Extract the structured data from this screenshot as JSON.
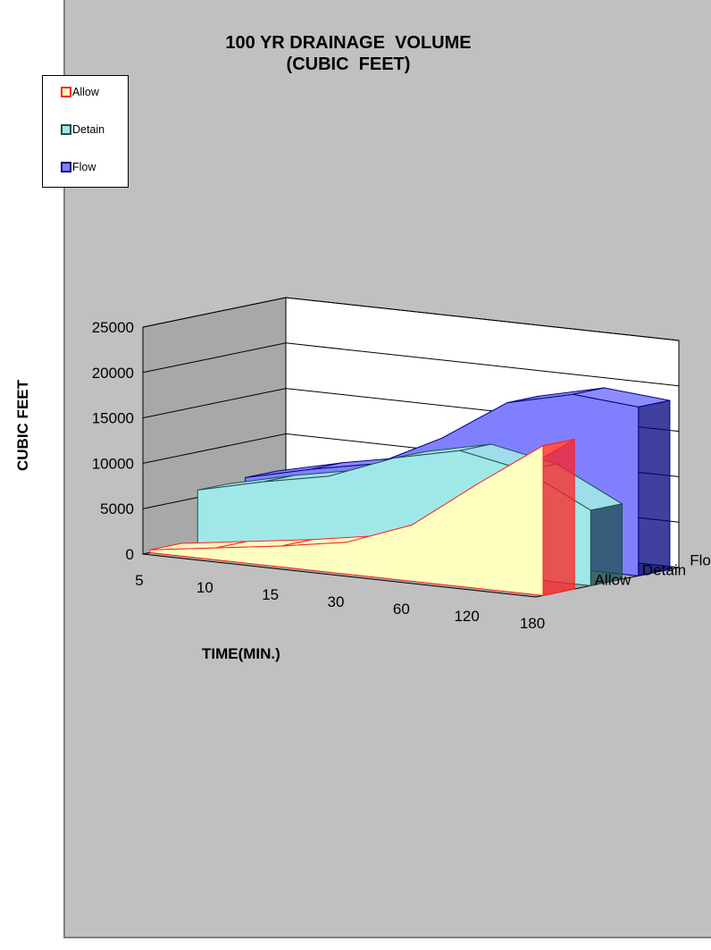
{
  "chart_data": {
    "type": "area",
    "view": "3d",
    "title": "100 YR DRAINAGE  VOLUME",
    "subtitle": "(CUBIC  FEET)",
    "xlabel": "TIME(MIN.)",
    "ylabel": "CUBIC FEET",
    "categories": [
      "5",
      "10",
      "15",
      "30",
      "60",
      "120",
      "180"
    ],
    "y_ticks": [
      "0",
      "5000",
      "10000",
      "15000",
      "20000",
      "25000"
    ],
    "ylim": [
      0,
      25000
    ],
    "gridlines": true,
    "legend_position": "top-left",
    "series": [
      {
        "name": "Allow",
        "values": [
          300,
          1300,
          2300,
          3500,
          6200,
          11500,
          16500
        ],
        "fill": "#ffffc0",
        "edge": "#ff2020"
      },
      {
        "name": "Detain",
        "values": [
          5800,
          7500,
          8900,
          11700,
          13300,
          11900,
          8300
        ],
        "fill": "#a0e8e8",
        "edge": "#1f5050"
      },
      {
        "name": "Flow",
        "values": [
          6100,
          7800,
          9200,
          12800,
          17500,
          19200,
          18600
        ],
        "fill": "#8080ff",
        "edge": "#00007f"
      }
    ]
  },
  "legend": {
    "items": [
      {
        "label": "Allow",
        "color": "#ff2020"
      },
      {
        "label": "Detain",
        "color": "#1f5050"
      },
      {
        "label": "Flow",
        "color": "#00007f"
      }
    ]
  }
}
